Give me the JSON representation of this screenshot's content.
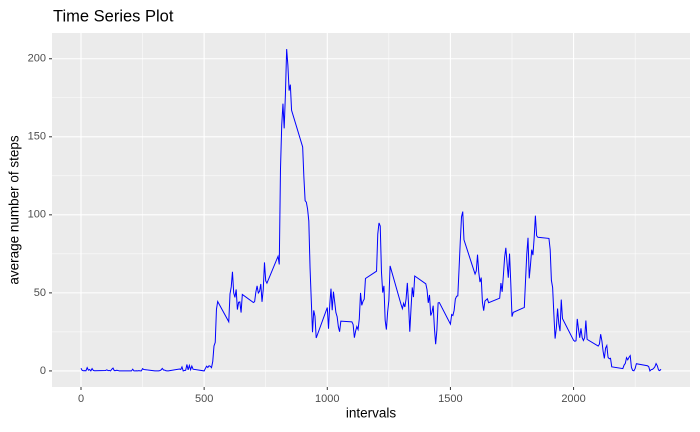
{
  "chart_data": {
    "type": "line",
    "title": "Time Series Plot",
    "x_label": "intervals",
    "y_label": "average number of steps",
    "color": "#0000ff",
    "grid": true,
    "xlim": [
      -117.75,
      2472.75
    ],
    "xticks": [
      0,
      500,
      1000,
      1500,
      2000
    ],
    "xminor": [
      250,
      750,
      1250,
      1750,
      2250
    ],
    "ylim": [
      -10.3,
      216.5
    ],
    "yticks": [
      0,
      50,
      100,
      150,
      200
    ],
    "yminor": [
      25,
      75,
      125,
      175
    ],
    "x": [
      0,
      5,
      10,
      15,
      20,
      25,
      30,
      35,
      40,
      45,
      50,
      55,
      100,
      105,
      110,
      115,
      120,
      125,
      130,
      135,
      140,
      145,
      150,
      155,
      200,
      205,
      210,
      215,
      220,
      225,
      230,
      235,
      240,
      245,
      250,
      255,
      300,
      305,
      310,
      315,
      320,
      325,
      330,
      335,
      340,
      345,
      350,
      355,
      400,
      405,
      410,
      415,
      420,
      425,
      430,
      435,
      440,
      445,
      450,
      455,
      500,
      505,
      510,
      515,
      520,
      525,
      530,
      535,
      540,
      545,
      550,
      555,
      600,
      605,
      610,
      615,
      620,
      625,
      630,
      635,
      640,
      645,
      650,
      655,
      700,
      705,
      710,
      715,
      720,
      725,
      730,
      735,
      740,
      745,
      750,
      755,
      800,
      805,
      810,
      815,
      820,
      825,
      830,
      835,
      840,
      845,
      850,
      855,
      900,
      905,
      910,
      915,
      920,
      925,
      930,
      935,
      940,
      945,
      950,
      955,
      1000,
      1005,
      1010,
      1015,
      1020,
      1025,
      1030,
      1035,
      1040,
      1045,
      1050,
      1055,
      1100,
      1105,
      1110,
      1115,
      1120,
      1125,
      1130,
      1135,
      1140,
      1145,
      1150,
      1155,
      1200,
      1205,
      1210,
      1215,
      1220,
      1225,
      1230,
      1235,
      1240,
      1245,
      1250,
      1255,
      1300,
      1305,
      1310,
      1315,
      1320,
      1325,
      1330,
      1335,
      1340,
      1345,
      1350,
      1355,
      1400,
      1405,
      1410,
      1415,
      1420,
      1425,
      1430,
      1435,
      1440,
      1445,
      1450,
      1455,
      1500,
      1505,
      1510,
      1515,
      1520,
      1525,
      1530,
      1535,
      1540,
      1545,
      1550,
      1555,
      1600,
      1605,
      1610,
      1615,
      1620,
      1625,
      1630,
      1635,
      1640,
      1645,
      1650,
      1655,
      1700,
      1705,
      1710,
      1715,
      1720,
      1725,
      1730,
      1735,
      1740,
      1745,
      1750,
      1755,
      1800,
      1805,
      1810,
      1815,
      1820,
      1825,
      1830,
      1835,
      1840,
      1845,
      1850,
      1855,
      1900,
      1905,
      1910,
      1915,
      1920,
      1925,
      1930,
      1935,
      1940,
      1945,
      1950,
      1955,
      2000,
      2005,
      2010,
      2015,
      2020,
      2025,
      2030,
      2035,
      2040,
      2045,
      2050,
      2055,
      2100,
      2105,
      2110,
      2115,
      2120,
      2125,
      2130,
      2135,
      2140,
      2145,
      2150,
      2155,
      2200,
      2205,
      2210,
      2215,
      2220,
      2225,
      2230,
      2235,
      2240,
      2245,
      2250,
      2255,
      2300,
      2305,
      2310,
      2315,
      2320,
      2325,
      2330,
      2335,
      2340,
      2345,
      2350,
      2355
    ],
    "values": [
      1.7,
      0.3,
      0.1,
      0.2,
      0.1,
      2.1,
      0.5,
      0.9,
      0,
      1.5,
      0.3,
      0.1,
      0.3,
      0.7,
      0.2,
      0.3,
      0,
      1.1,
      1.8,
      0.2,
      0.2,
      0.4,
      0.3,
      0,
      0,
      0,
      1.1,
      0,
      0,
      0.1,
      0,
      0.2,
      0,
      0,
      1.5,
      0.9,
      0,
      0,
      0,
      0,
      0.2,
      0.6,
      1.6,
      0.6,
      0.5,
      0.1,
      0,
      0,
      1.2,
      0.9,
      2.6,
      0,
      0.3,
      0.4,
      4.1,
      0.7,
      3.5,
      0.8,
      3.1,
      1.1,
      0,
      1.6,
      3,
      2.2,
      3.3,
      3,
      2.1,
      6.1,
      16,
      18.3,
      39.5,
      44.5,
      31.5,
      49.3,
      53.8,
      63.5,
      50,
      47.1,
      52.2,
      39.3,
      44,
      44.2,
      37.4,
      49,
      43.8,
      44.4,
      50.5,
      54.5,
      49.9,
      51,
      55.7,
      44.3,
      52.3,
      69.5,
      57.8,
      56.2,
      73.4,
      68.2,
      129.4,
      157.5,
      171.2,
      155.4,
      177.3,
      206.2,
      195.9,
      179.6,
      183.4,
      167,
      143.5,
      124,
      109.1,
      108.1,
      103.7,
      96,
      66.2,
      45.2,
      24.8,
      38.8,
      35,
      21.1,
      40.6,
      27,
      42.4,
      52.7,
      38.9,
      50.8,
      44.3,
      37.4,
      34.7,
      28.3,
      25.1,
      31.9,
      31.4,
      29.7,
      21.3,
      25.5,
      28.4,
      26.5,
      33.4,
      50,
      42,
      44.6,
      46,
      59.2,
      63.9,
      87.7,
      94.8,
      92.8,
      63.4,
      50.2,
      54.5,
      32.4,
      26.5,
      37.7,
      45.1,
      67.3,
      42.3,
      39.9,
      43.3,
      41,
      46.2,
      56.4,
      42.8,
      25.1,
      40,
      53.5,
      47.3,
      60.8,
      55.8,
      52,
      43.6,
      48.7,
      35.5,
      37.5,
      41.8,
      27.5,
      17.1,
      26.1,
      43.6,
      43.8,
      30,
      36.1,
      35.5,
      38.8,
      46,
      47.8,
      48.1,
      65.3,
      82.9,
      98.7,
      102.1,
      84,
      62.1,
      64.1,
      74.5,
      63.2,
      56.9,
      59.8,
      43.9,
      38.6,
      44.7,
      45.5,
      46.2,
      43.7,
      46.6,
      56.3,
      50.7,
      61.2,
      72.7,
      78.9,
      68.9,
      59.7,
      75.1,
      56.5,
      34.8,
      37.5,
      40.7,
      58,
      74.7,
      85.3,
      59.3,
      67.8,
      77.7,
      74.2,
      85.3,
      99.5,
      86.6,
      85.6,
      84.9,
      77.8,
      58,
      53.4,
      36.3,
      20.7,
      27.4,
      40,
      30.2,
      25.5,
      45.7,
      33.5,
      19.6,
      19,
      19.3,
      33.3,
      26.8,
      21.2,
      27.3,
      21.3,
      19.5,
      21.3,
      32.3,
      20.2,
      15.9,
      17.2,
      23.5,
      19.2,
      12.5,
      8,
      14.7,
      16.3,
      8.7,
      7.8,
      8.1,
      2.6,
      1.5,
      3.7,
      4.8,
      8.5,
      7.1,
      8.7,
      9.8,
      2.2,
      0.3,
      0.1,
      1.6,
      4.6,
      3.3,
      2.8,
      0,
      0.8,
      1,
      1.6,
      2.6,
      4.7,
      3.3,
      0.6,
      0.2,
      1.1
    ]
  }
}
